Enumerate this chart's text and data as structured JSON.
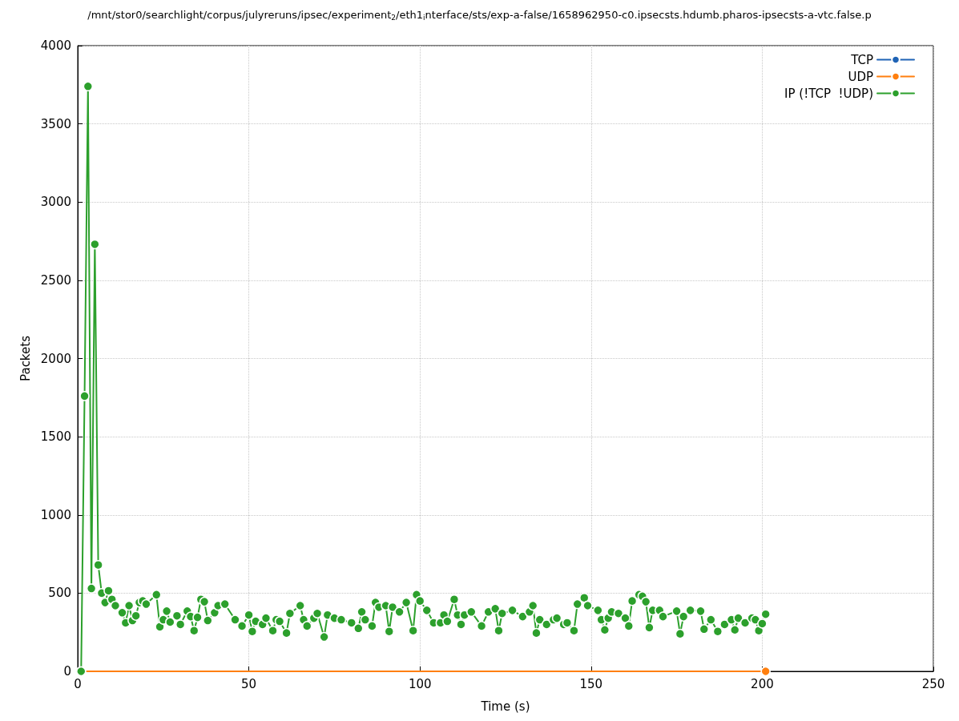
{
  "chart_data": {
    "type": "line",
    "title": "/mnt/stor0/searchlight/corpus/julyreruns/ipsec/experiment$_{2}$/eth1$_{i}$nterface/sts/exp-a-false/1658962950-c0.ipsecsts.hdumb.pharos-ipsecsts-a-vtc.false.p",
    "xlabel": "Time (s)",
    "ylabel": "Packets",
    "xlim": [
      0,
      250
    ],
    "xticks": [
      0,
      50,
      100,
      150,
      200,
      250
    ],
    "ylim": [
      0,
      4000
    ],
    "yticks": [
      0,
      500,
      1000,
      1500,
      2000,
      2500,
      3000,
      3500,
      4000
    ],
    "grid": true,
    "legend": "top right",
    "marker": "circle",
    "line_style": "solid",
    "series": [
      {
        "name": "TCP",
        "color": "#1f63b5"
      },
      {
        "name": "UDP",
        "color": "#ff7f0e",
        "x": [
          1,
          201
        ],
        "values": [
          0,
          0
        ]
      },
      {
        "name": "IP (!TCP  !UDP)",
        "color": "#2ca02c",
        "x": [
          1,
          2,
          3,
          4,
          5,
          6,
          7,
          8,
          9,
          10,
          11,
          13,
          14,
          15,
          16,
          17,
          18,
          19,
          20,
          23,
          24,
          25,
          26,
          27,
          29,
          30,
          32,
          33,
          34,
          35,
          36,
          37,
          38,
          40,
          41,
          43,
          46,
          48,
          50,
          51,
          52,
          54,
          55,
          57,
          58,
          59,
          61,
          62,
          65,
          66,
          67,
          69,
          70,
          72,
          73,
          75,
          77,
          80,
          82,
          83,
          84,
          86,
          87,
          88,
          90,
          91,
          92,
          94,
          96,
          98,
          99,
          100,
          102,
          104,
          106,
          107,
          108,
          110,
          111,
          112,
          113,
          115,
          118,
          120,
          122,
          123,
          124,
          127,
          130,
          132,
          133,
          134,
          135,
          137,
          139,
          140,
          142,
          143,
          145,
          146,
          148,
          149,
          152,
          153,
          154,
          155,
          156,
          158,
          160,
          161,
          162,
          164,
          165,
          166,
          167,
          168,
          170,
          171,
          175,
          176,
          177,
          179,
          182,
          183,
          185,
          187,
          189,
          191,
          192,
          193,
          195,
          197,
          198,
          199,
          200,
          201
        ],
        "values": [
          0,
          1760,
          3740,
          530,
          2730,
          680,
          500,
          440,
          515,
          460,
          420,
          375,
          310,
          420,
          325,
          355,
          440,
          450,
          430,
          490,
          285,
          330,
          385,
          315,
          355,
          300,
          385,
          350,
          260,
          345,
          460,
          445,
          325,
          375,
          420,
          430,
          330,
          290,
          360,
          255,
          320,
          300,
          340,
          260,
          330,
          320,
          245,
          370,
          420,
          330,
          290,
          340,
          370,
          220,
          360,
          340,
          330,
          310,
          275,
          380,
          330,
          290,
          440,
          410,
          420,
          255,
          410,
          380,
          440,
          260,
          490,
          450,
          390,
          310,
          310,
          360,
          320,
          460,
          360,
          300,
          360,
          380,
          290,
          380,
          400,
          260,
          370,
          390,
          350,
          380,
          420,
          245,
          330,
          300,
          330,
          340,
          300,
          310,
          260,
          430,
          470,
          420,
          390,
          330,
          265,
          340,
          380,
          370,
          340,
          290,
          450,
          490,
          480,
          445,
          280,
          390,
          390,
          350,
          385,
          240,
          350,
          390,
          385,
          270,
          330,
          255,
          300,
          330,
          265,
          340,
          310,
          340,
          330,
          260,
          305,
          365
        ]
      }
    ]
  }
}
